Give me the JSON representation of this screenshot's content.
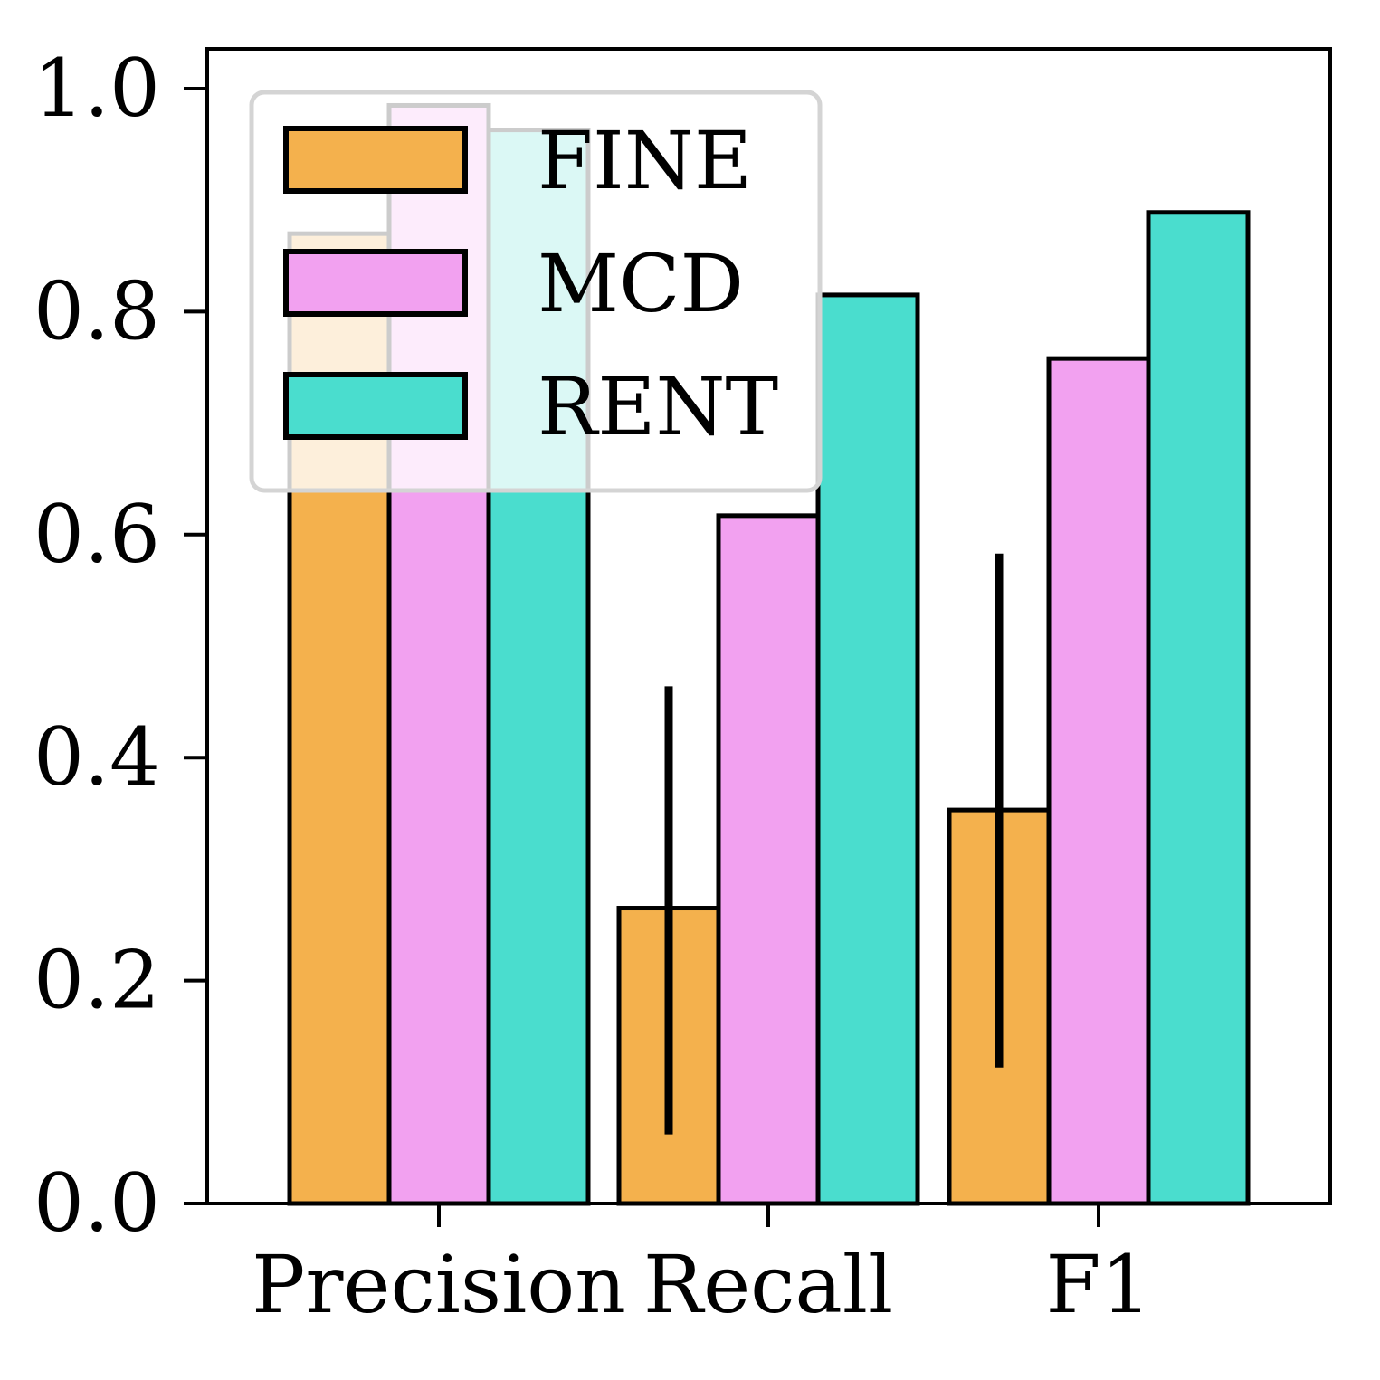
{
  "chart_data": {
    "type": "bar",
    "title": "",
    "xlabel": "",
    "ylabel": "",
    "categories": [
      "Precision",
      "Recall",
      "F1"
    ],
    "ylim": [
      0,
      1.04
    ],
    "yticks": [
      "0.0",
      "0.2",
      "0.4",
      "0.6",
      "0.8",
      "1.0"
    ],
    "ytick_values": [
      0,
      0.2,
      0.4,
      0.6,
      0.8,
      1.0
    ],
    "legend_position": "upper-left",
    "series": [
      {
        "name": "FINE",
        "color": "#F4B14D",
        "values": [
          0.87,
          0.265,
          0.353
        ],
        "errors": [
          null,
          [
            0.062,
            0.464
          ],
          [
            0.122,
            0.583
          ]
        ]
      },
      {
        "name": "MCD",
        "color": "#F2A1F0",
        "values": [
          0.985,
          0.617,
          0.758
        ],
        "errors": [
          null,
          null,
          null
        ]
      },
      {
        "name": "RENT",
        "color": "#4ADDCE",
        "values": [
          0.963,
          0.815,
          0.889
        ],
        "errors": [
          null,
          null,
          null
        ]
      }
    ]
  }
}
